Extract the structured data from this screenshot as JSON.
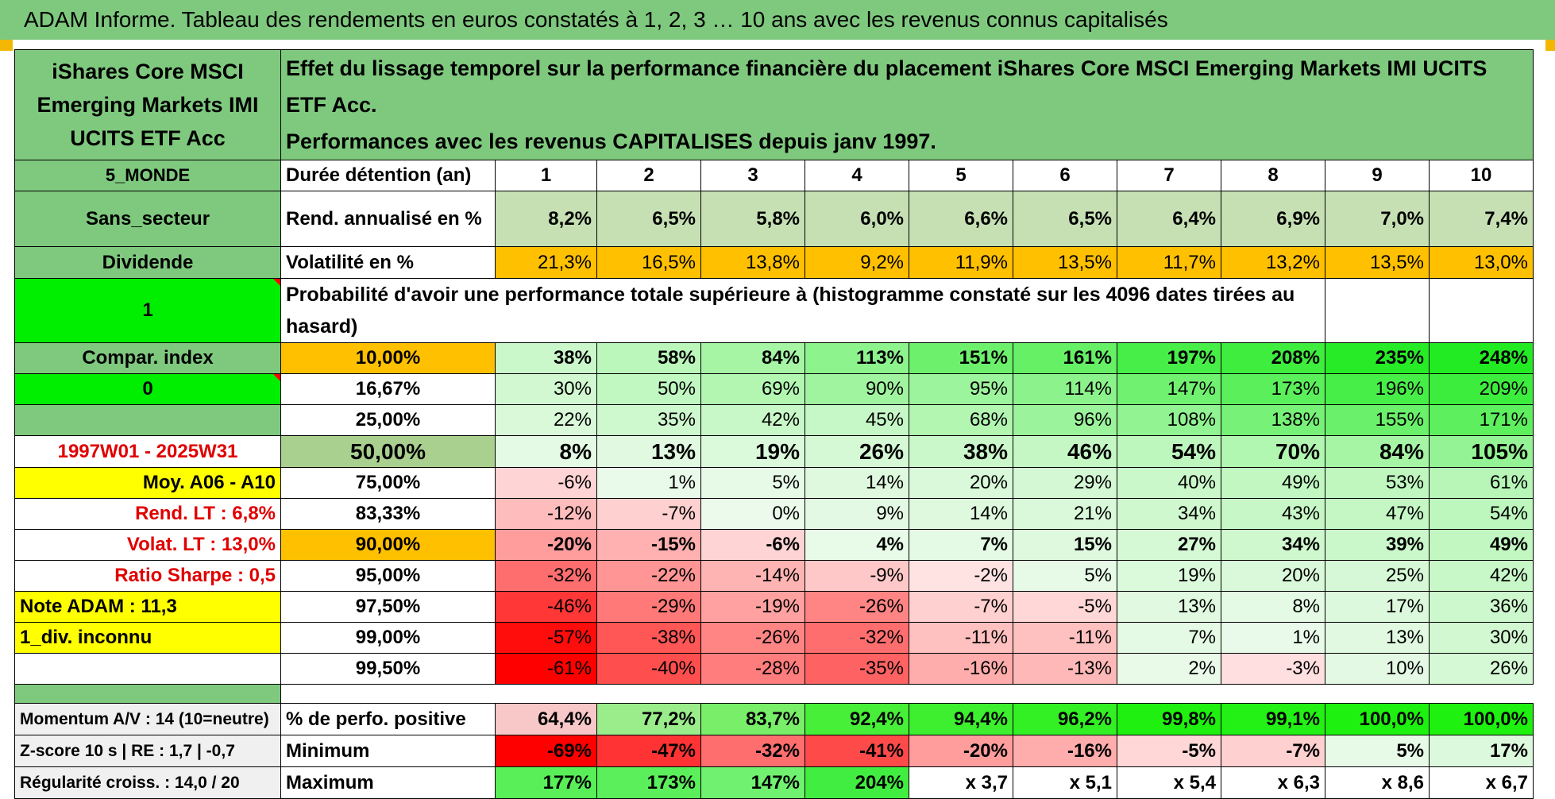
{
  "title": "ADAM Informe. Tableau des rendements en euros constatés à 1, 2, 3 … 10 ans avec les revenus connus capitalisés",
  "fund_name": "iShares Core MSCI Emerging Markets IMI UCITS ETF Acc",
  "header_text_1": "Effet du lissage temporel sur la performance financière du placement iShares Core MSCI Emerging Markets IMI UCITS ETF Acc.",
  "header_text_2": "Performances avec les revenus CAPITALISES depuis janv 1997.",
  "side": {
    "zone": "5_MONDE",
    "sector": "Sans_secteur",
    "dividend_label": "Dividende",
    "dividend_value": "1",
    "compar_label": "Compar. index",
    "compar_value": "0",
    "period": "1997W01 - 2025W31",
    "moy": "Moy. A06 - A10",
    "rend_lt": "Rend. LT :    6,8%",
    "volat_lt": "Volat. LT :    13,0%",
    "sharpe": "Ratio Sharpe :     0,5",
    "note": "Note ADAM : 11,3",
    "div_inconnu": "1_div. inconnu",
    "momentum": "Momentum A/V : 14 (10=neutre)",
    "zscore": "Z-score 10 s | RE : 1,7 | -0,7",
    "regularite": "Régularité croiss. : 14,0 / 20"
  },
  "row_labels": {
    "duree": "Durée détention (an)",
    "rend": "Rend. annualisé en %",
    "volat": "Volatilité en %",
    "proba": "Probabilité d'avoir une performance totale supérieure à (histogramme constaté sur les 4096 dates tirées au hasard)",
    "positive": "% de perfo. positive",
    "minimum": "Minimum",
    "maximum": "Maximum"
  },
  "years": [
    "1",
    "2",
    "3",
    "4",
    "5",
    "6",
    "7",
    "8",
    "9",
    "10"
  ],
  "rend": [
    "8,2%",
    "6,5%",
    "5,8%",
    "6,0%",
    "6,6%",
    "6,5%",
    "6,4%",
    "6,9%",
    "7,0%",
    "7,4%"
  ],
  "volat": [
    "21,3%",
    "16,5%",
    "13,8%",
    "9,2%",
    "11,9%",
    "13,5%",
    "11,7%",
    "13,2%",
    "13,5%",
    "13,0%"
  ],
  "percentiles": [
    {
      "p": "10,00%",
      "v": [
        "38%",
        "58%",
        "84%",
        "113%",
        "151%",
        "161%",
        "197%",
        "208%",
        "235%",
        "248%"
      ]
    },
    {
      "p": "16,67%",
      "v": [
        "30%",
        "50%",
        "69%",
        "90%",
        "95%",
        "114%",
        "147%",
        "173%",
        "196%",
        "209%"
      ]
    },
    {
      "p": "25,00%",
      "v": [
        "22%",
        "35%",
        "42%",
        "45%",
        "68%",
        "96%",
        "108%",
        "138%",
        "155%",
        "171%"
      ]
    },
    {
      "p": "50,00%",
      "v": [
        "8%",
        "13%",
        "19%",
        "26%",
        "38%",
        "46%",
        "54%",
        "70%",
        "84%",
        "105%"
      ]
    },
    {
      "p": "75,00%",
      "v": [
        "-6%",
        "1%",
        "5%",
        "14%",
        "20%",
        "29%",
        "40%",
        "49%",
        "53%",
        "61%"
      ]
    },
    {
      "p": "83,33%",
      "v": [
        "-12%",
        "-7%",
        "0%",
        "9%",
        "14%",
        "21%",
        "34%",
        "43%",
        "47%",
        "54%"
      ]
    },
    {
      "p": "90,00%",
      "v": [
        "-20%",
        "-15%",
        "-6%",
        "4%",
        "7%",
        "15%",
        "27%",
        "34%",
        "39%",
        "49%"
      ]
    },
    {
      "p": "95,00%",
      "v": [
        "-32%",
        "-22%",
        "-14%",
        "-9%",
        "-2%",
        "5%",
        "19%",
        "20%",
        "25%",
        "42%"
      ]
    },
    {
      "p": "97,50%",
      "v": [
        "-46%",
        "-29%",
        "-19%",
        "-26%",
        "-7%",
        "-5%",
        "13%",
        "8%",
        "17%",
        "36%"
      ]
    },
    {
      "p": "99,00%",
      "v": [
        "-57%",
        "-38%",
        "-26%",
        "-32%",
        "-11%",
        "-11%",
        "7%",
        "1%",
        "13%",
        "30%"
      ]
    },
    {
      "p": "99,50%",
      "v": [
        "-61%",
        "-40%",
        "-28%",
        "-35%",
        "-16%",
        "-13%",
        "2%",
        "-3%",
        "10%",
        "26%"
      ]
    }
  ],
  "positive": [
    "64,4%",
    "77,2%",
    "83,7%",
    "92,4%",
    "94,4%",
    "96,2%",
    "99,8%",
    "99,1%",
    "100,0%",
    "100,0%"
  ],
  "minimum": [
    "-69%",
    "-47%",
    "-32%",
    "-41%",
    "-20%",
    "-16%",
    "-5%",
    "-7%",
    "5%",
    "17%"
  ],
  "maximum": [
    "177%",
    "173%",
    "147%",
    "204%",
    "x 3,7",
    "x 5,1",
    "x 5,4",
    "x 6,3",
    "x 8,6",
    "x 6,7"
  ],
  "colors": {
    "header_green": "#7fc97f",
    "highlight_yellow": "#ffff00",
    "highlight_orange": "#ffc000",
    "bright_green": "#00ee00",
    "deep_red": "#ff0000"
  }
}
